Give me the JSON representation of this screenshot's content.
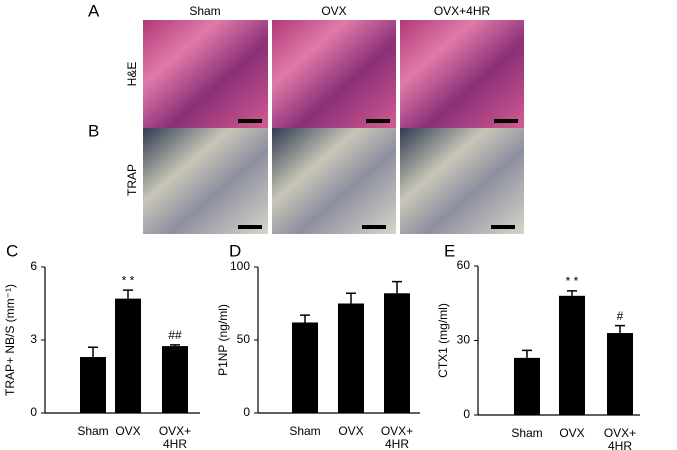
{
  "panel_labels": [
    "A",
    "B",
    "C",
    "D",
    "E"
  ],
  "image_columns": [
    "Sham",
    "OVX",
    "OVX+4HR"
  ],
  "image_rows": [
    "H&E",
    "TRAP"
  ],
  "chart_data": [
    {
      "type": "bar",
      "ylabel": "TRAP+ NB/S (mm⁻¹)",
      "categories": [
        "Sham",
        "OVX",
        "OVX+\n4HR"
      ],
      "values": [
        2.3,
        4.7,
        2.75
      ],
      "errors": [
        0.4,
        0.35,
        0.05
      ],
      "annotations": [
        null,
        "* *",
        "##"
      ],
      "color": "#000000",
      "ylim": [
        0,
        6
      ],
      "yticks": [
        0,
        3,
        6
      ]
    },
    {
      "type": "bar",
      "ylabel": "P1NP (ng/ml)",
      "categories": [
        "Sham",
        "OVX",
        "OVX+\n4HR"
      ],
      "values": [
        62,
        75,
        82
      ],
      "errors": [
        5,
        7,
        8
      ],
      "color": "#000000",
      "ylim": [
        0,
        100
      ],
      "yticks": [
        0,
        50,
        100
      ]
    },
    {
      "type": "bar",
      "ylabel": "CTX1 (mg/ml)",
      "categories": [
        "Sham",
        "OVX",
        "OVX+\n4HR"
      ],
      "values": [
        23,
        48,
        33
      ],
      "errors": [
        3,
        2,
        3
      ],
      "annotations": [
        null,
        "* *",
        "#"
      ],
      "color": "#000000",
      "ylim": [
        0,
        60
      ],
      "yticks": [
        0,
        30,
        60
      ]
    }
  ]
}
